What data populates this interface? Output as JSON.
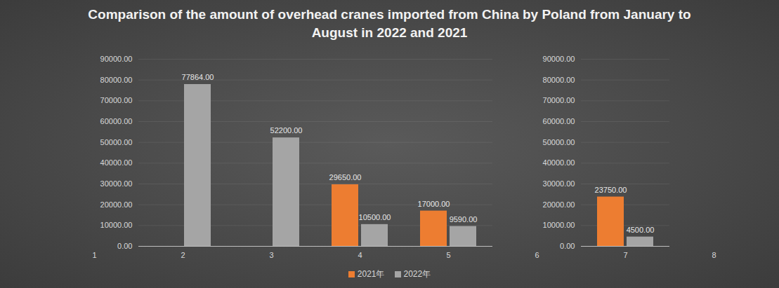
{
  "chart_data": {
    "type": "bar",
    "title": "Comparison of the amount of overhead cranes imported from China by Poland from January to August in 2022 and 2021",
    "categories": [
      "1",
      "2",
      "3",
      "4",
      "5",
      "6",
      "7",
      "8"
    ],
    "series": [
      {
        "name": "2021年",
        "color": "#ed7d31",
        "values": [
          null,
          null,
          null,
          29650,
          17000,
          null,
          23750,
          null
        ],
        "value_labels": [
          null,
          null,
          null,
          "29650.00",
          "17000.00",
          null,
          "23750.00",
          null
        ]
      },
      {
        "name": "2022年",
        "color": "#a5a5a5",
        "values": [
          null,
          77864,
          52200,
          10500,
          9590,
          null,
          4500,
          null
        ],
        "value_labels": [
          null,
          "77864.00",
          "52200.00",
          "10500.00",
          "9590.00",
          null,
          "4500.00",
          null
        ]
      }
    ],
    "ylim": [
      0,
      90000
    ],
    "yticks": [
      {
        "value": 0,
        "label": "0.00"
      },
      {
        "value": 10000,
        "label": "10000.00"
      },
      {
        "value": 20000,
        "label": "20000.00"
      },
      {
        "value": 30000,
        "label": "30000.00"
      },
      {
        "value": 40000,
        "label": "40000.00"
      },
      {
        "value": 50000,
        "label": "50000.00"
      },
      {
        "value": 60000,
        "label": "60000.00"
      },
      {
        "value": 70000,
        "label": "70000.00"
      },
      {
        "value": 80000,
        "label": "80000.00"
      },
      {
        "value": 90000,
        "label": "90000.00"
      }
    ],
    "grid": true,
    "legend": "bottom",
    "data_labels": true
  }
}
